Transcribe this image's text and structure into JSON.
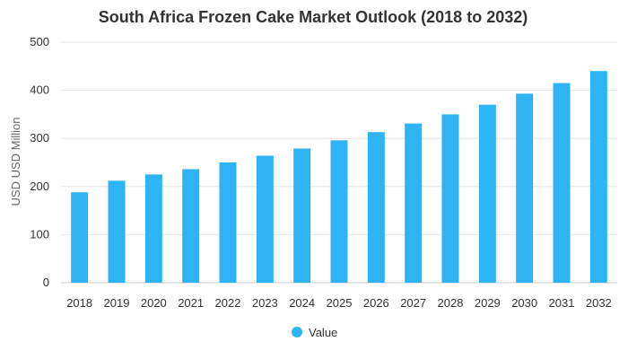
{
  "chart_data": {
    "type": "bar",
    "title": "South Africa Frozen Cake Market Outlook (2018 to 2032)",
    "xlabel": "",
    "ylabel": "USD USD Million",
    "categories": [
      "2018",
      "2019",
      "2020",
      "2021",
      "2022",
      "2023",
      "2024",
      "2025",
      "2026",
      "2027",
      "2028",
      "2029",
      "2030",
      "2031",
      "2032"
    ],
    "series": [
      {
        "name": "Value",
        "values": [
          188,
          212,
          225,
          236,
          250,
          264,
          279,
          296,
          313,
          331,
          350,
          370,
          393,
          415,
          440
        ],
        "color": "#2eb3f5"
      }
    ],
    "ylim": [
      0,
      500
    ],
    "yticks": [
      0,
      100,
      200,
      300,
      400,
      500
    ],
    "grid": true,
    "legend_position": "bottom-center"
  }
}
